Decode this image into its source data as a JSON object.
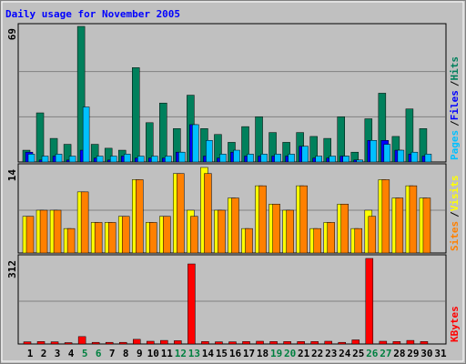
{
  "chart_data": {
    "type": "bar",
    "title": "Daily usage for November 2005",
    "categories": [
      "1",
      "2",
      "3",
      "4",
      "5",
      "6",
      "7",
      "8",
      "9",
      "10",
      "11",
      "12",
      "13",
      "14",
      "15",
      "16",
      "17",
      "18",
      "19",
      "20",
      "21",
      "22",
      "23",
      "24",
      "25",
      "26",
      "27",
      "28",
      "29",
      "30",
      "31"
    ],
    "category_colors": [
      "#000000",
      "#000000",
      "#000000",
      "#000000",
      "#008040",
      "#008040",
      "#000000",
      "#000000",
      "#000000",
      "#000000",
      "#000000",
      "#008040",
      "#008040",
      "#000000",
      "#000000",
      "#000000",
      "#000000",
      "#000000",
      "#008040",
      "#008040",
      "#000000",
      "#000000",
      "#000000",
      "#000000",
      "#000000",
      "#008040",
      "#008040",
      "#000000",
      "#000000",
      "#000000",
      "#000000"
    ],
    "label_separator": "/",
    "panels": [
      {
        "ylim": [
          0,
          69
        ],
        "yticks": [
          69
        ],
        "series": [
          {
            "name": "Hits",
            "color": "#00805c",
            "values": [
              6,
              25,
              12,
              9,
              69,
              9,
              7,
              6,
              48,
              20,
              30,
              17,
              34,
              17,
              14,
              10,
              18,
              23,
              15,
              10,
              15,
              13,
              12,
              23,
              5,
              22,
              35,
              13,
              27,
              17,
              0
            ]
          },
          {
            "name": "Files",
            "color": "#0000ff",
            "values": [
              5,
              1,
              3,
              1,
              6,
              2,
              1,
              3,
              2,
              2,
              2,
              5,
              19,
              3,
              2,
              5,
              3,
              3,
              3,
              3,
              8,
              2,
              2,
              3,
              1,
              11,
              11,
              6,
              4,
              3,
              0
            ]
          },
          {
            "name": "Pages",
            "color": "#00c0ff",
            "values": [
              4,
              3,
              4,
              3,
              28,
              3,
              3,
              4,
              3,
              3,
              3,
              5,
              19,
              11,
              4,
              6,
              4,
              4,
              4,
              4,
              8,
              3,
              3,
              3,
              1,
              11,
              9,
              6,
              5,
              4,
              0
            ]
          }
        ]
      },
      {
        "ylim": [
          0,
          14
        ],
        "yticks": [
          14
        ],
        "series": [
          {
            "name": "Visits",
            "color": "#ffff00",
            "values": [
              6,
              7,
              7,
              4,
              10,
              5,
              5,
              6,
              12,
              5,
              6,
              13,
              7,
              14,
              7,
              9,
              4,
              11,
              8,
              7,
              11,
              4,
              5,
              8,
              4,
              7,
              12,
              9,
              11,
              9,
              0
            ]
          },
          {
            "name": "Sites",
            "color": "#ff8000",
            "values": [
              6,
              7,
              7,
              4,
              10,
              5,
              5,
              6,
              12,
              5,
              6,
              13,
              6,
              13,
              7,
              9,
              4,
              11,
              8,
              7,
              11,
              4,
              5,
              8,
              4,
              6,
              12,
              9,
              11,
              9,
              0
            ]
          }
        ]
      },
      {
        "ylim": [
          0,
          312
        ],
        "yticks": [
          312
        ],
        "series": [
          {
            "name": "KBytes",
            "color": "#ff0000",
            "values": [
              8,
              9,
              8,
              5,
              27,
              6,
              6,
              6,
              17,
              10,
              13,
              12,
              292,
              9,
              8,
              8,
              9,
              10,
              9,
              9,
              9,
              9,
              10,
              6,
              15,
              312,
              10,
              9,
              13,
              9,
              0
            ]
          }
        ]
      }
    ]
  }
}
